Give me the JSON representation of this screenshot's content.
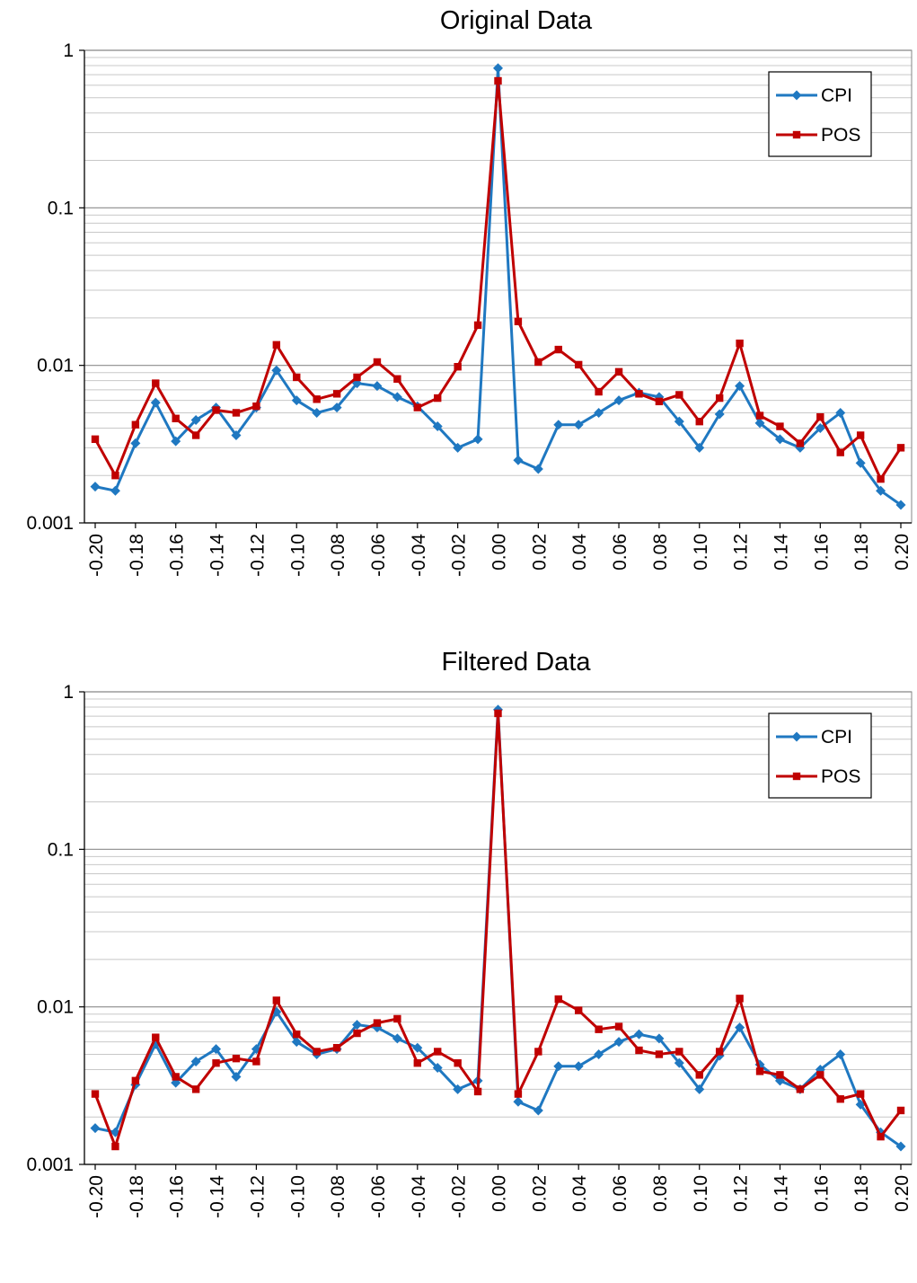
{
  "chart_data": [
    {
      "type": "line",
      "title": "Original Data",
      "xlabel": "",
      "ylabel": "",
      "yscale": "log",
      "ylim": [
        0.001,
        1
      ],
      "yticks": [
        "1",
        "0.1",
        "0.01",
        "0.001"
      ],
      "xlim": [
        -0.2,
        0.2
      ],
      "xticks": [
        "-0.20",
        "-0.18",
        "-0.16",
        "-0.14",
        "-0.12",
        "-0.10",
        "-0.08",
        "-0.06",
        "-0.04",
        "-0.02",
        "0.00",
        "0.02",
        "0.04",
        "0.06",
        "0.08",
        "0.10",
        "0.12",
        "0.14",
        "0.16",
        "0.18",
        "0.20"
      ],
      "grid": true,
      "legend": "top-right",
      "x": [
        -0.2,
        -0.19,
        -0.18,
        -0.17,
        -0.16,
        -0.15,
        -0.14,
        -0.13,
        -0.12,
        -0.11,
        -0.1,
        -0.09,
        -0.08,
        -0.07,
        -0.06,
        -0.05,
        -0.04,
        -0.03,
        -0.02,
        -0.01,
        0.0,
        0.01,
        0.02,
        0.03,
        0.04,
        0.05,
        0.06,
        0.07,
        0.08,
        0.09,
        0.1,
        0.11,
        0.12,
        0.13,
        0.14,
        0.15,
        0.16,
        0.17,
        0.18,
        0.19,
        0.2
      ],
      "series": [
        {
          "name": "CPI",
          "color": "#1F78C1",
          "marker": "diamond",
          "values": [
            0.0017,
            0.0016,
            0.0032,
            0.0058,
            0.0033,
            0.0045,
            0.0054,
            0.0036,
            0.0054,
            0.0093,
            0.006,
            0.005,
            0.0054,
            0.0077,
            0.0074,
            0.0063,
            0.0055,
            0.0041,
            0.003,
            0.0034,
            0.77,
            0.0025,
            0.0022,
            0.0042,
            0.0042,
            0.005,
            0.006,
            0.0067,
            0.0063,
            0.0044,
            0.003,
            0.0049,
            0.0074,
            0.0043,
            0.0034,
            0.003,
            0.004,
            0.005,
            0.0024,
            0.0016,
            0.0013
          ]
        },
        {
          "name": "POS",
          "color": "#C00000",
          "marker": "square",
          "values": [
            0.0034,
            0.002,
            0.0042,
            0.0077,
            0.0046,
            0.0036,
            0.0052,
            0.005,
            0.0055,
            0.0135,
            0.0084,
            0.0061,
            0.0066,
            0.0084,
            0.0105,
            0.0082,
            0.0054,
            0.0062,
            0.0098,
            0.018,
            0.64,
            0.019,
            0.0105,
            0.0126,
            0.0101,
            0.0068,
            0.0091,
            0.0066,
            0.0059,
            0.0065,
            0.0044,
            0.0062,
            0.0138,
            0.0048,
            0.0041,
            0.0032,
            0.0047,
            0.0028,
            0.0036,
            0.0019,
            0.003
          ]
        }
      ]
    },
    {
      "type": "line",
      "title": "Filtered Data",
      "xlabel": "",
      "ylabel": "",
      "yscale": "log",
      "ylim": [
        0.001,
        1
      ],
      "yticks": [
        "1",
        "0.1",
        "0.01",
        "0.001"
      ],
      "xlim": [
        -0.2,
        0.2
      ],
      "xticks": [
        "-0.20",
        "-0.18",
        "-0.16",
        "-0.14",
        "-0.12",
        "-0.10",
        "-0.08",
        "-0.06",
        "-0.04",
        "-0.02",
        "0.00",
        "0.02",
        "0.04",
        "0.06",
        "0.08",
        "0.10",
        "0.12",
        "0.14",
        "0.16",
        "0.18",
        "0.20"
      ],
      "grid": true,
      "legend": "top-right",
      "x": [
        -0.2,
        -0.19,
        -0.18,
        -0.17,
        -0.16,
        -0.15,
        -0.14,
        -0.13,
        -0.12,
        -0.11,
        -0.1,
        -0.09,
        -0.08,
        -0.07,
        -0.06,
        -0.05,
        -0.04,
        -0.03,
        -0.02,
        -0.01,
        0.0,
        0.01,
        0.02,
        0.03,
        0.04,
        0.05,
        0.06,
        0.07,
        0.08,
        0.09,
        0.1,
        0.11,
        0.12,
        0.13,
        0.14,
        0.15,
        0.16,
        0.17,
        0.18,
        0.19,
        0.2
      ],
      "series": [
        {
          "name": "CPI",
          "color": "#1F78C1",
          "marker": "diamond",
          "values": [
            0.0017,
            0.0016,
            0.0032,
            0.0058,
            0.0033,
            0.0045,
            0.0054,
            0.0036,
            0.0054,
            0.0093,
            0.006,
            0.005,
            0.0054,
            0.0077,
            0.0074,
            0.0063,
            0.0055,
            0.0041,
            0.003,
            0.0034,
            0.77,
            0.0025,
            0.0022,
            0.0042,
            0.0042,
            0.005,
            0.006,
            0.0067,
            0.0063,
            0.0044,
            0.003,
            0.0049,
            0.0074,
            0.0043,
            0.0034,
            0.003,
            0.004,
            0.005,
            0.0024,
            0.0016,
            0.0013
          ]
        },
        {
          "name": "POS",
          "color": "#C00000",
          "marker": "square",
          "values": [
            0.0028,
            0.0013,
            0.0034,
            0.0064,
            0.0036,
            0.003,
            0.0044,
            0.0047,
            0.0045,
            0.011,
            0.0067,
            0.0052,
            0.0055,
            0.0068,
            0.0079,
            0.0084,
            0.0044,
            0.0052,
            0.0044,
            0.0029,
            0.73,
            0.0028,
            0.0052,
            0.0112,
            0.0095,
            0.0072,
            0.0075,
            0.0053,
            0.005,
            0.0052,
            0.0037,
            0.0052,
            0.0113,
            0.0039,
            0.0037,
            0.003,
            0.0037,
            0.0026,
            0.0028,
            0.0015,
            0.0022
          ]
        }
      ]
    }
  ]
}
